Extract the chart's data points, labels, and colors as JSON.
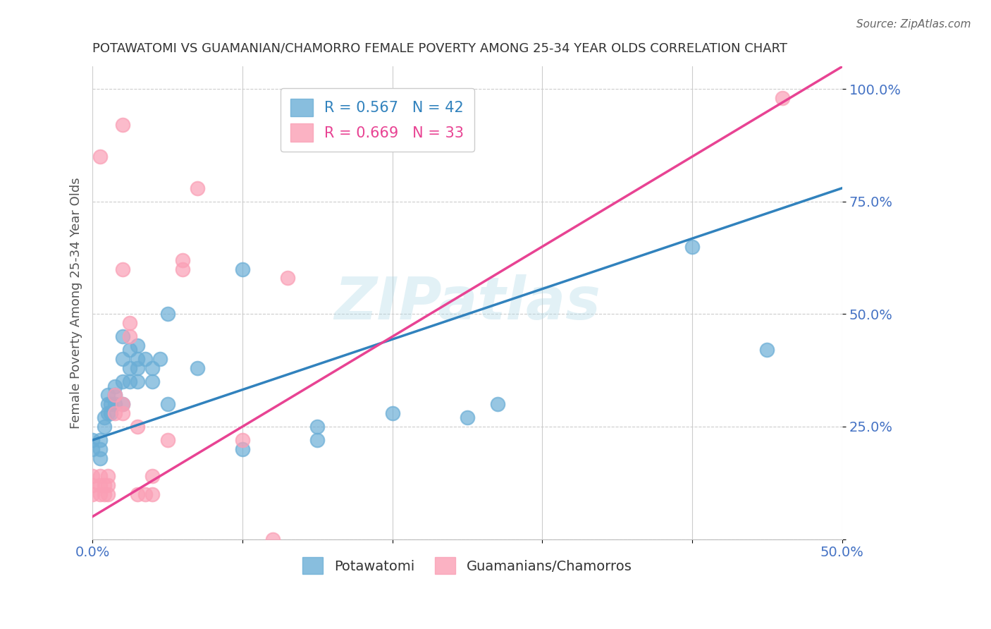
{
  "title": "POTAWATOMI VS GUAMANIAN/CHAMORRO FEMALE POVERTY AMONG 25-34 YEAR OLDS CORRELATION CHART",
  "source": "Source: ZipAtlas.com",
  "ylabel": "Female Poverty Among 25-34 Year Olds",
  "watermark": "ZIPatlas",
  "xlim": [
    0.0,
    0.5
  ],
  "ylim": [
    0.0,
    1.05
  ],
  "xticks": [
    0.0,
    0.1,
    0.2,
    0.3,
    0.4,
    0.5
  ],
  "ytick_positions": [
    0.0,
    0.25,
    0.5,
    0.75,
    1.0
  ],
  "ytick_labels": [
    "",
    "25.0%",
    "50.0%",
    "75.0%",
    "100.0%"
  ],
  "xtick_labels": [
    "0.0%",
    "",
    "",
    "",
    "",
    "50.0%"
  ],
  "blue_color": "#6baed6",
  "pink_color": "#fa9fb5",
  "blue_line_color": "#3182bd",
  "pink_line_color": "#e84393",
  "blue_scatter": [
    [
      0.0,
      0.2
    ],
    [
      0.0,
      0.22
    ],
    [
      0.005,
      0.18
    ],
    [
      0.005,
      0.2
    ],
    [
      0.005,
      0.22
    ],
    [
      0.008,
      0.25
    ],
    [
      0.008,
      0.27
    ],
    [
      0.01,
      0.28
    ],
    [
      0.01,
      0.3
    ],
    [
      0.01,
      0.32
    ],
    [
      0.012,
      0.28
    ],
    [
      0.012,
      0.3
    ],
    [
      0.015,
      0.3
    ],
    [
      0.015,
      0.32
    ],
    [
      0.015,
      0.34
    ],
    [
      0.02,
      0.3
    ],
    [
      0.02,
      0.35
    ],
    [
      0.02,
      0.4
    ],
    [
      0.02,
      0.45
    ],
    [
      0.025,
      0.35
    ],
    [
      0.025,
      0.38
    ],
    [
      0.025,
      0.42
    ],
    [
      0.03,
      0.35
    ],
    [
      0.03,
      0.38
    ],
    [
      0.03,
      0.4
    ],
    [
      0.03,
      0.43
    ],
    [
      0.035,
      0.4
    ],
    [
      0.04,
      0.35
    ],
    [
      0.04,
      0.38
    ],
    [
      0.045,
      0.4
    ],
    [
      0.05,
      0.3
    ],
    [
      0.05,
      0.5
    ],
    [
      0.07,
      0.38
    ],
    [
      0.1,
      0.2
    ],
    [
      0.1,
      0.6
    ],
    [
      0.15,
      0.22
    ],
    [
      0.15,
      0.25
    ],
    [
      0.2,
      0.28
    ],
    [
      0.25,
      0.27
    ],
    [
      0.27,
      0.3
    ],
    [
      0.4,
      0.65
    ],
    [
      0.45,
      0.42
    ]
  ],
  "pink_scatter": [
    [
      0.0,
      0.1
    ],
    [
      0.0,
      0.12
    ],
    [
      0.0,
      0.14
    ],
    [
      0.005,
      0.1
    ],
    [
      0.005,
      0.12
    ],
    [
      0.005,
      0.14
    ],
    [
      0.008,
      0.1
    ],
    [
      0.008,
      0.12
    ],
    [
      0.01,
      0.1
    ],
    [
      0.01,
      0.12
    ],
    [
      0.01,
      0.14
    ],
    [
      0.015,
      0.28
    ],
    [
      0.015,
      0.32
    ],
    [
      0.02,
      0.28
    ],
    [
      0.02,
      0.3
    ],
    [
      0.025,
      0.45
    ],
    [
      0.025,
      0.48
    ],
    [
      0.03,
      0.1
    ],
    [
      0.03,
      0.25
    ],
    [
      0.035,
      0.1
    ],
    [
      0.04,
      0.1
    ],
    [
      0.04,
      0.14
    ],
    [
      0.05,
      0.22
    ],
    [
      0.06,
      0.6
    ],
    [
      0.06,
      0.62
    ],
    [
      0.07,
      0.78
    ],
    [
      0.1,
      0.22
    ],
    [
      0.12,
      0.0
    ],
    [
      0.13,
      0.58
    ],
    [
      0.02,
      0.6
    ],
    [
      0.46,
      0.98
    ],
    [
      0.005,
      0.85
    ],
    [
      0.02,
      0.92
    ]
  ],
  "blue_line_x": [
    0.0,
    0.5
  ],
  "blue_line_y": [
    0.22,
    0.78
  ],
  "pink_line_x": [
    0.0,
    0.5
  ],
  "pink_line_y": [
    0.05,
    1.05
  ],
  "legend_blue_label": "R = 0.567   N = 42",
  "legend_pink_label": "R = 0.669   N = 33",
  "bottom_legend_blue": "Potawatomi",
  "bottom_legend_pink": "Guamanians/Chamorros",
  "background_color": "#ffffff",
  "grid_color": "#cccccc",
  "title_color": "#333333",
  "axis_label_color": "#4472c4",
  "right_tick_color": "#4472c4"
}
